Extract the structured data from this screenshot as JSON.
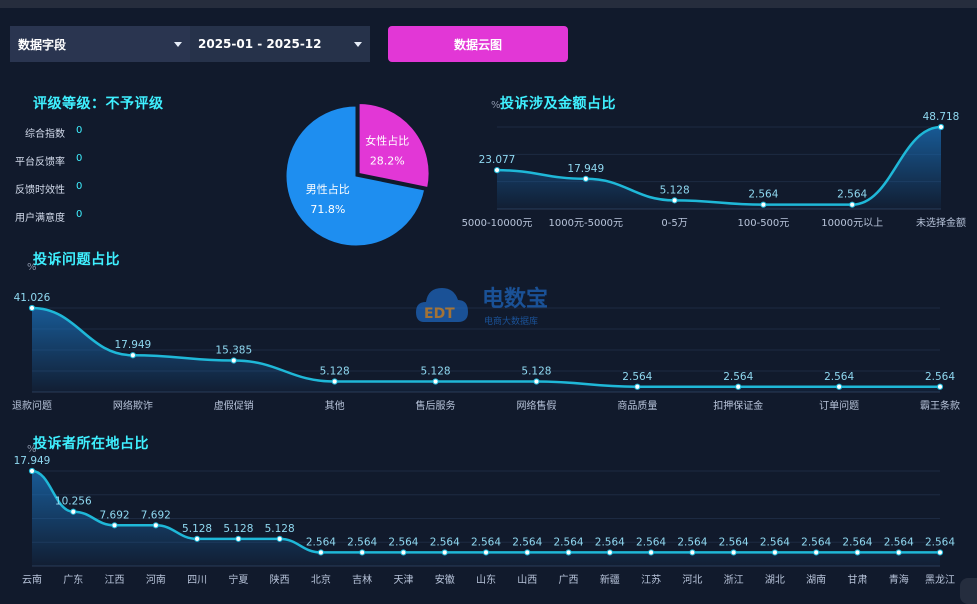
{
  "filters": {
    "field_label": "数据字段",
    "date_range": "2025-01 - 2025-12",
    "cloud_button": "数据云图"
  },
  "rating": {
    "title": "评级等级：不予评级",
    "items": [
      {
        "label": "综合指数",
        "value": "0"
      },
      {
        "label": "平台反馈率",
        "value": "0"
      },
      {
        "label": "反馈时效性",
        "value": "0"
      },
      {
        "label": "用户满意度",
        "value": "0"
      }
    ]
  },
  "gender_pie": {
    "chart_data": {
      "type": "pie",
      "slices": [
        {
          "label": "女性占比",
          "value": 28.2,
          "display": "28.2%",
          "color": "#e237d6"
        },
        {
          "label": "男性占比",
          "value": 71.8,
          "display": "71.8%",
          "color": "#1e8ef0"
        }
      ]
    }
  },
  "amount_chart": {
    "title": "投诉涉及金额占比",
    "unit": "%",
    "chart_data": {
      "type": "area",
      "categories": [
        "5000-10000元",
        "1000元-5000元",
        "0-5万",
        "100-500元",
        "10000元以上",
        "未选择金额"
      ],
      "values": [
        23.077,
        17.949,
        5.128,
        2.564,
        2.564,
        48.718
      ],
      "labels": [
        "23.077",
        "17.949",
        "5.128",
        "2.564",
        "2.564",
        "48.718"
      ]
    }
  },
  "issue_chart": {
    "title": "投诉问题占比",
    "unit": "%",
    "chart_data": {
      "type": "area",
      "categories": [
        "退款问题",
        "网络欺诈",
        "虚假促销",
        "其他",
        "售后服务",
        "网络售假",
        "商品质量",
        "扣押保证金",
        "订单问题",
        "霸王条款"
      ],
      "values": [
        41.026,
        17.949,
        15.385,
        5.128,
        5.128,
        5.128,
        2.564,
        2.564,
        2.564,
        2.564
      ],
      "labels": [
        "41.026",
        "17.949",
        "15.385",
        "5.128",
        "5.128",
        "5.128",
        "2.564",
        "2.564",
        "2.564",
        "2.564"
      ]
    }
  },
  "location_chart": {
    "title": "投诉者所在地占比",
    "unit": "%",
    "chart_data": {
      "type": "area",
      "categories": [
        "云南",
        "广东",
        "江西",
        "河南",
        "四川",
        "宁夏",
        "陕西",
        "北京",
        "吉林",
        "天津",
        "安徽",
        "山东",
        "山西",
        "广西",
        "新疆",
        "江苏",
        "河北",
        "浙江",
        "湖北",
        "湖南",
        "甘肃",
        "青海",
        "黑龙江"
      ],
      "values": [
        17.949,
        10.256,
        7.692,
        7.692,
        5.128,
        5.128,
        5.128,
        2.564,
        2.564,
        2.564,
        2.564,
        2.564,
        2.564,
        2.564,
        2.564,
        2.564,
        2.564,
        2.564,
        2.564,
        2.564,
        2.564,
        2.564,
        2.564
      ],
      "labels": [
        "17.949",
        "10.256",
        "7.692",
        "7.692",
        "5.128",
        "5.128",
        "5.128",
        "2.564",
        "2.564",
        "2.564",
        "2.564",
        "2.564",
        "2.564",
        "2.564",
        "2.564",
        "2.564",
        "2.564",
        "2.564",
        "2.564",
        "2.564",
        "2.564",
        "2.564",
        "2.564"
      ]
    }
  },
  "watermark": {
    "name": "电数宝",
    "tagline": "电商大数据库",
    "logo_text": "EDT"
  },
  "colors": {
    "accent": "#3ff0ff",
    "line": "#1fb8d8",
    "pink": "#e237d6",
    "blue": "#1e8ef0",
    "bg": "#111a2c"
  }
}
